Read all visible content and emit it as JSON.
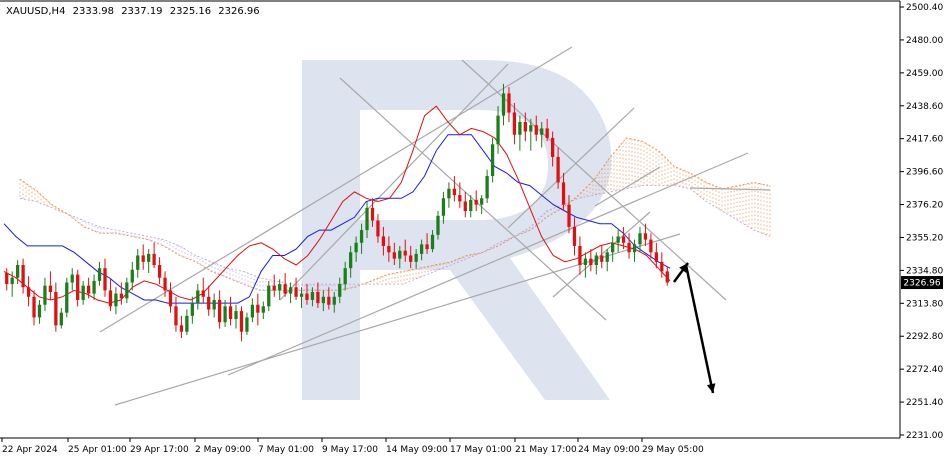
{
  "chart_data": {
    "type": "candlestick",
    "symbol": "XAUUSD,H4",
    "ohlc": {
      "open": "2333.98",
      "high": "2337.19",
      "low": "2325.16",
      "close": "2326.96"
    },
    "current_price": "2326.96",
    "y_ticks": [
      "2500.40",
      "2480.00",
      "2459.00",
      "2438.60",
      "2417.60",
      "2396.60",
      "2376.20",
      "2355.20",
      "2334.80",
      "2313.80",
      "2292.80",
      "2272.40",
      "2251.40",
      "2231.00"
    ],
    "ylim": [
      2231.0,
      2500.4
    ],
    "x_ticks": [
      "22 Apr 2024",
      "25 Apr 01:00",
      "29 Apr 17:00",
      "2 May 09:00",
      "7 May 01:00",
      "9 May 17:00",
      "14 May 09:00",
      "17 May 01:00",
      "21 May 17:00",
      "24 May 09:00",
      "29 May 05:00"
    ],
    "grid": false,
    "colors": {
      "bull": "#1a7f1a",
      "bear": "#e01010",
      "tenkan": "#e01010",
      "kijun": "#1a1aee",
      "cloud": "#e8883a",
      "cloud_alt": "#b89ad8",
      "trendline": "#a8a8a8",
      "arrow": "#000000",
      "axis": "#000000",
      "price_tag": "#000000",
      "watermark": "#dde3ef"
    },
    "candles": [
      [
        2333,
        2336,
        2322,
        2326
      ],
      [
        2326,
        2334,
        2318,
        2330
      ],
      [
        2330,
        2341,
        2326,
        2338
      ],
      [
        2338,
        2342,
        2320,
        2324
      ],
      [
        2324,
        2331,
        2312,
        2318
      ],
      [
        2318,
        2322,
        2300,
        2305
      ],
      [
        2305,
        2316,
        2301,
        2313
      ],
      [
        2313,
        2330,
        2309,
        2325
      ],
      [
        2325,
        2334,
        2316,
        2321
      ],
      [
        2321,
        2327,
        2296,
        2300
      ],
      [
        2300,
        2311,
        2298,
        2308
      ],
      [
        2308,
        2330,
        2305,
        2327
      ],
      [
        2327,
        2336,
        2322,
        2332
      ],
      [
        2332,
        2335,
        2312,
        2316
      ],
      [
        2316,
        2328,
        2313,
        2325
      ],
      [
        2325,
        2330,
        2317,
        2320
      ],
      [
        2320,
        2332,
        2316,
        2328
      ],
      [
        2328,
        2340,
        2325,
        2336
      ],
      [
        2336,
        2342,
        2318,
        2322
      ],
      [
        2322,
        2329,
        2309,
        2312
      ],
      [
        2312,
        2324,
        2307,
        2320
      ],
      [
        2320,
        2327,
        2313,
        2317
      ],
      [
        2317,
        2330,
        2314,
        2327
      ],
      [
        2327,
        2340,
        2322,
        2335
      ],
      [
        2335,
        2348,
        2330,
        2344
      ],
      [
        2344,
        2351,
        2335,
        2340
      ],
      [
        2340,
        2348,
        2333,
        2345
      ],
      [
        2345,
        2352,
        2336,
        2338
      ],
      [
        2338,
        2343,
        2326,
        2330
      ],
      [
        2330,
        2334,
        2318,
        2322
      ],
      [
        2322,
        2327,
        2308,
        2312
      ],
      [
        2312,
        2318,
        2296,
        2300
      ],
      [
        2300,
        2306,
        2292,
        2296
      ],
      [
        2296,
        2310,
        2294,
        2306
      ],
      [
        2306,
        2318,
        2301,
        2314
      ],
      [
        2314,
        2326,
        2310,
        2322
      ],
      [
        2322,
        2330,
        2314,
        2318
      ],
      [
        2318,
        2325,
        2306,
        2310
      ],
      [
        2310,
        2320,
        2305,
        2316
      ],
      [
        2316,
        2322,
        2298,
        2302
      ],
      [
        2302,
        2316,
        2299,
        2312
      ],
      [
        2312,
        2318,
        2300,
        2304
      ],
      [
        2304,
        2313,
        2298,
        2309
      ],
      [
        2309,
        2312,
        2290,
        2296
      ],
      [
        2296,
        2308,
        2294,
        2305
      ],
      [
        2305,
        2317,
        2302,
        2313
      ],
      [
        2313,
        2320,
        2300,
        2308
      ],
      [
        2308,
        2315,
        2304,
        2312
      ],
      [
        2312,
        2328,
        2309,
        2325
      ],
      [
        2325,
        2332,
        2318,
        2322
      ],
      [
        2322,
        2329,
        2316,
        2326
      ],
      [
        2326,
        2333,
        2318,
        2320
      ],
      [
        2320,
        2327,
        2314,
        2324
      ],
      [
        2324,
        2330,
        2316,
        2318
      ],
      [
        2318,
        2324,
        2311,
        2320
      ],
      [
        2320,
        2326,
        2313,
        2316
      ],
      [
        2316,
        2324,
        2312,
        2321
      ],
      [
        2321,
        2327,
        2311,
        2314
      ],
      [
        2314,
        2322,
        2309,
        2318
      ],
      [
        2318,
        2324,
        2310,
        2313
      ],
      [
        2313,
        2321,
        2308,
        2318
      ],
      [
        2318,
        2330,
        2314,
        2326
      ],
      [
        2326,
        2340,
        2322,
        2336
      ],
      [
        2336,
        2350,
        2330,
        2346
      ],
      [
        2346,
        2356,
        2340,
        2352
      ],
      [
        2352,
        2364,
        2345,
        2360
      ],
      [
        2360,
        2378,
        2355,
        2374
      ],
      [
        2374,
        2380,
        2362,
        2366
      ],
      [
        2366,
        2370,
        2352,
        2356
      ],
      [
        2356,
        2362,
        2344,
        2350
      ],
      [
        2350,
        2356,
        2340,
        2346
      ],
      [
        2346,
        2352,
        2338,
        2342
      ],
      [
        2342,
        2350,
        2336,
        2347
      ],
      [
        2347,
        2354,
        2340,
        2344
      ],
      [
        2344,
        2350,
        2336,
        2340
      ],
      [
        2340,
        2348,
        2336,
        2345
      ],
      [
        2345,
        2354,
        2341,
        2351
      ],
      [
        2351,
        2358,
        2345,
        2348
      ],
      [
        2348,
        2360,
        2346,
        2357
      ],
      [
        2357,
        2372,
        2354,
        2369
      ],
      [
        2369,
        2384,
        2364,
        2380
      ],
      [
        2380,
        2390,
        2374,
        2386
      ],
      [
        2386,
        2394,
        2378,
        2382
      ],
      [
        2382,
        2390,
        2374,
        2378
      ],
      [
        2378,
        2384,
        2368,
        2372
      ],
      [
        2372,
        2382,
        2368,
        2379
      ],
      [
        2379,
        2385,
        2372,
        2376
      ],
      [
        2376,
        2382,
        2370,
        2380
      ],
      [
        2380,
        2398,
        2377,
        2394
      ],
      [
        2394,
        2418,
        2390,
        2414
      ],
      [
        2414,
        2438,
        2408,
        2432
      ],
      [
        2432,
        2452,
        2426,
        2446
      ],
      [
        2446,
        2450,
        2428,
        2434
      ],
      [
        2434,
        2440,
        2414,
        2420
      ],
      [
        2420,
        2432,
        2410,
        2428
      ],
      [
        2428,
        2434,
        2416,
        2422
      ],
      [
        2422,
        2430,
        2410,
        2426
      ],
      [
        2426,
        2432,
        2416,
        2420
      ],
      [
        2420,
        2428,
        2412,
        2424
      ],
      [
        2424,
        2430,
        2416,
        2418
      ],
      [
        2418,
        2422,
        2400,
        2406
      ],
      [
        2406,
        2412,
        2386,
        2390
      ],
      [
        2390,
        2396,
        2372,
        2376
      ],
      [
        2376,
        2382,
        2358,
        2362
      ],
      [
        2362,
        2368,
        2344,
        2350
      ],
      [
        2350,
        2356,
        2332,
        2338
      ],
      [
        2338,
        2346,
        2330,
        2342
      ],
      [
        2342,
        2348,
        2334,
        2338
      ],
      [
        2338,
        2346,
        2332,
        2344
      ],
      [
        2344,
        2350,
        2336,
        2340
      ],
      [
        2340,
        2348,
        2334,
        2346
      ],
      [
        2346,
        2356,
        2340,
        2352
      ],
      [
        2352,
        2360,
        2346,
        2356
      ],
      [
        2356,
        2362,
        2348,
        2352
      ],
      [
        2352,
        2358,
        2342,
        2346
      ],
      [
        2346,
        2354,
        2340,
        2351
      ],
      [
        2351,
        2362,
        2346,
        2358
      ],
      [
        2358,
        2364,
        2350,
        2354
      ],
      [
        2354,
        2358,
        2342,
        2346
      ],
      [
        2346,
        2352,
        2336,
        2340
      ],
      [
        2340,
        2346,
        2330,
        2334
      ],
      [
        2334,
        2337,
        2325,
        2327
      ]
    ],
    "tenkan": [
      2334,
      2330,
      2324,
      2318,
      2316,
      2318,
      2322,
      2320,
      2316,
      2314,
      2316,
      2324,
      2328,
      2326,
      2322,
      2318,
      2316,
      2320,
      2328,
      2336,
      2344,
      2350,
      2352,
      2348,
      2342,
      2338,
      2344,
      2354,
      2366,
      2378,
      2384,
      2380,
      2378,
      2380,
      2390,
      2410,
      2432,
      2438,
      2428,
      2420,
      2424,
      2422,
      2418,
      2408,
      2392,
      2374,
      2356,
      2344,
      2340,
      2342,
      2346,
      2350,
      2352,
      2350,
      2348,
      2344,
      2336,
      2328
    ],
    "kijun": [
      2364,
      2356,
      2350,
      2350,
      2350,
      2350,
      2346,
      2340,
      2334,
      2330,
      2324,
      2320,
      2316,
      2316,
      2314,
      2314,
      2314,
      2314,
      2314,
      2314,
      2314,
      2318,
      2334,
      2344,
      2344,
      2348,
      2356,
      2360,
      2360,
      2364,
      2368,
      2378,
      2380,
      2380,
      2380,
      2384,
      2394,
      2410,
      2420,
      2420,
      2420,
      2410,
      2400,
      2396,
      2390,
      2388,
      2382,
      2376,
      2372,
      2368,
      2366,
      2364,
      2364,
      2358,
      2350,
      2345,
      2340,
      2336
    ],
    "cloud": {
      "span_a": [
        2392,
        2385,
        2376,
        2370,
        2362,
        2358,
        2358,
        2356,
        2354,
        2350,
        2344,
        2340,
        2334,
        2330,
        2326,
        2322,
        2322,
        2322,
        2322,
        2322,
        2322,
        2324,
        2328,
        2332,
        2334,
        2336,
        2338,
        2340,
        2344,
        2346,
        2350,
        2356,
        2360,
        2368,
        2374,
        2382,
        2392,
        2406,
        2418,
        2416,
        2410,
        2400,
        2396,
        2390,
        2386,
        2388,
        2390,
        2388
      ],
      "span_b": [
        2380,
        2378,
        2374,
        2370,
        2366,
        2362,
        2360,
        2358,
        2356,
        2354,
        2350,
        2344,
        2340,
        2336,
        2334,
        2330,
        2328,
        2326,
        2326,
        2326,
        2326,
        2326,
        2326,
        2326,
        2326,
        2330,
        2334,
        2338,
        2342,
        2346,
        2352,
        2356,
        2362,
        2372,
        2376,
        2380,
        2382,
        2384,
        2386,
        2388,
        2388,
        2388,
        2386,
        2378,
        2372,
        2366,
        2360,
        2356
      ]
    }
  }
}
